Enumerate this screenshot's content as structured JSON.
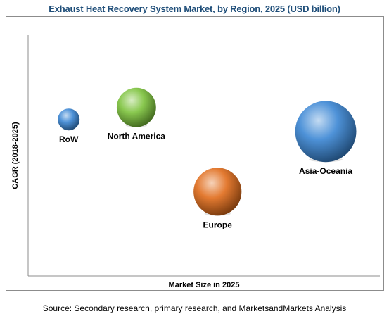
{
  "chart_data": {
    "type": "scatter",
    "title": "Exhaust Heat Recovery System Market, by Region, 2025 (USD billion)",
    "xlabel": "Market Size in 2025",
    "ylabel": "CAGR (2018-2025)",
    "grid": false,
    "points": [
      {
        "label": "RoW",
        "x": 1.5,
        "y": 6.5,
        "size": 1.0,
        "color": "#3a86d4"
      },
      {
        "label": "North America",
        "x": 4.0,
        "y": 7.0,
        "size": 1.8,
        "color": "#7cc23b"
      },
      {
        "label": "Asia-Oceania",
        "x": 11.0,
        "y": 6.0,
        "size": 2.8,
        "color": "#3a86d4"
      },
      {
        "label": "Europe",
        "x": 7.0,
        "y": 3.5,
        "size": 2.2,
        "color": "#e06b1a"
      }
    ],
    "xlim": [
      0,
      13
    ],
    "ylim": [
      0,
      10
    ]
  },
  "source": "Source: Secondary research, primary research, and MarketsandMarkets Analysis"
}
